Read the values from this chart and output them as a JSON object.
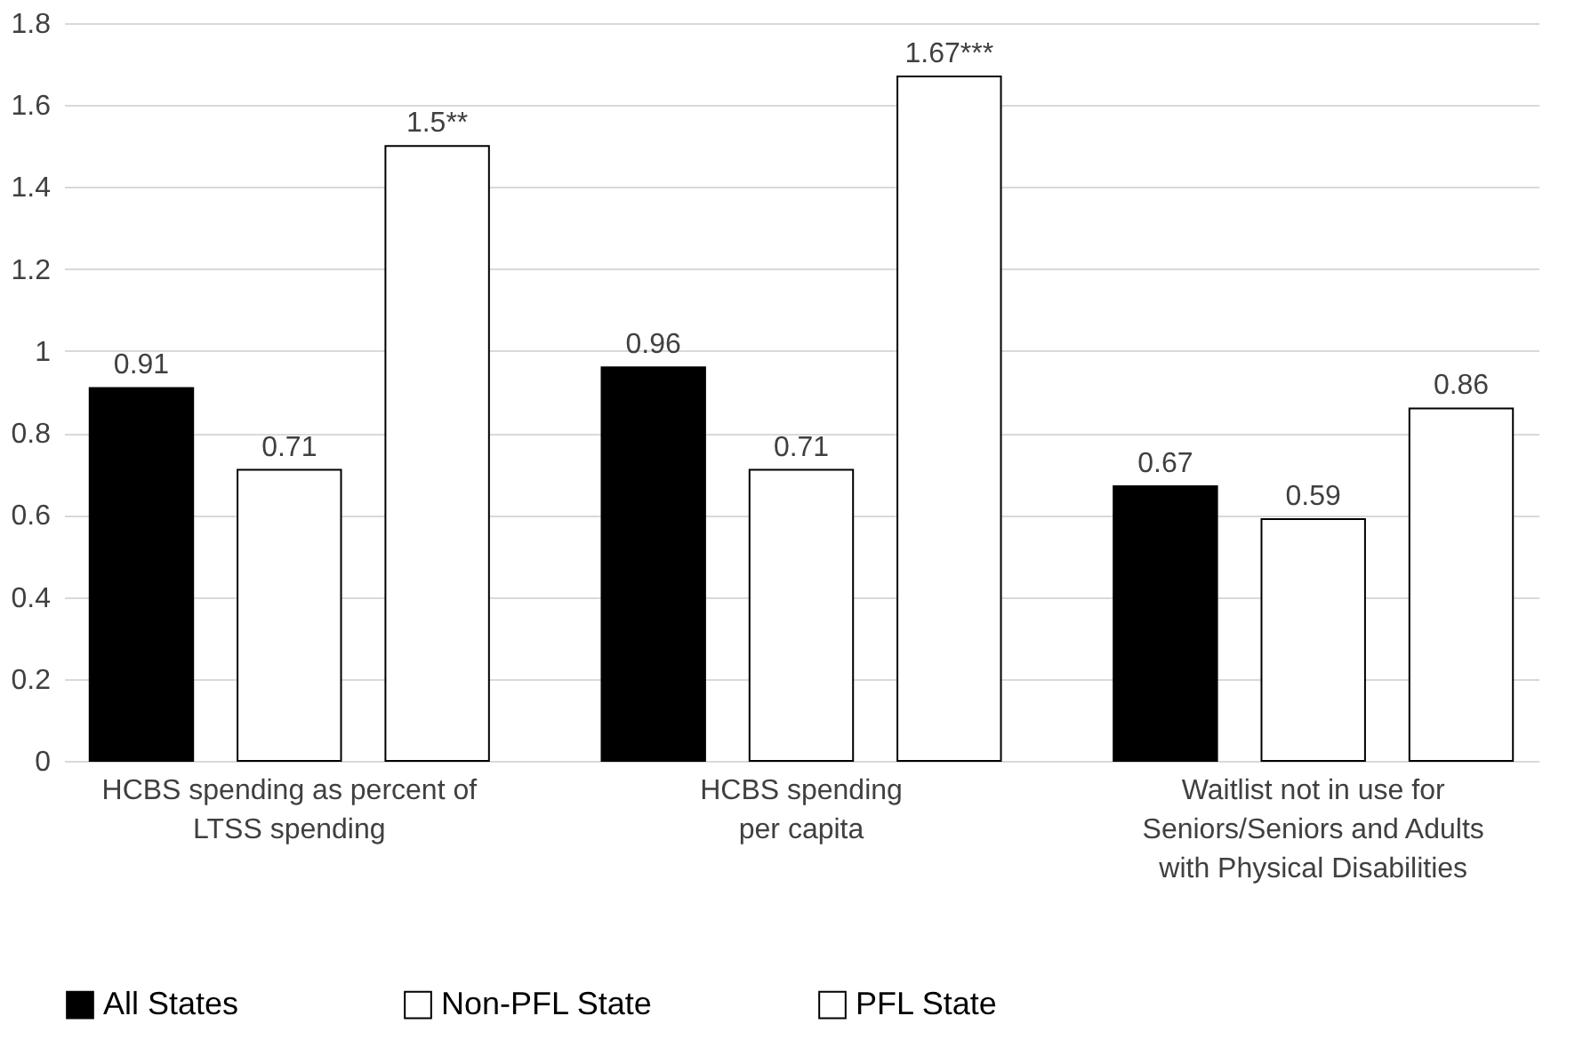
{
  "chart_data": {
    "type": "bar",
    "categories": [
      "HCBS spending as percent of\nLTSS spending",
      "HCBS spending\nper capita",
      "Waitlist not in use for\nSeniors/Seniors and Adults\nwith Physical Disabilities"
    ],
    "series": [
      {
        "name": "All States",
        "color": "#000000",
        "values": [
          0.91,
          0.96,
          0.67
        ],
        "value_labels": [
          "0.91",
          "0.96",
          "0.67"
        ]
      },
      {
        "name": "Non-PFL State",
        "color": "#ffffff",
        "values": [
          0.71,
          0.71,
          0.59
        ],
        "value_labels": [
          "0.71",
          "0.71",
          "0.59"
        ]
      },
      {
        "name": "PFL State",
        "color": "#ffffff",
        "values": [
          1.5,
          1.67,
          0.86
        ],
        "value_labels": [
          "1.5**",
          "1.67***",
          "0.86"
        ]
      }
    ],
    "ylim": [
      0,
      1.8
    ],
    "yticks": [
      0,
      0.2,
      0.4,
      0.6,
      0.8,
      1,
      1.2,
      1.4,
      1.6,
      1.8
    ],
    "grid": "y",
    "legend": "bottom"
  }
}
